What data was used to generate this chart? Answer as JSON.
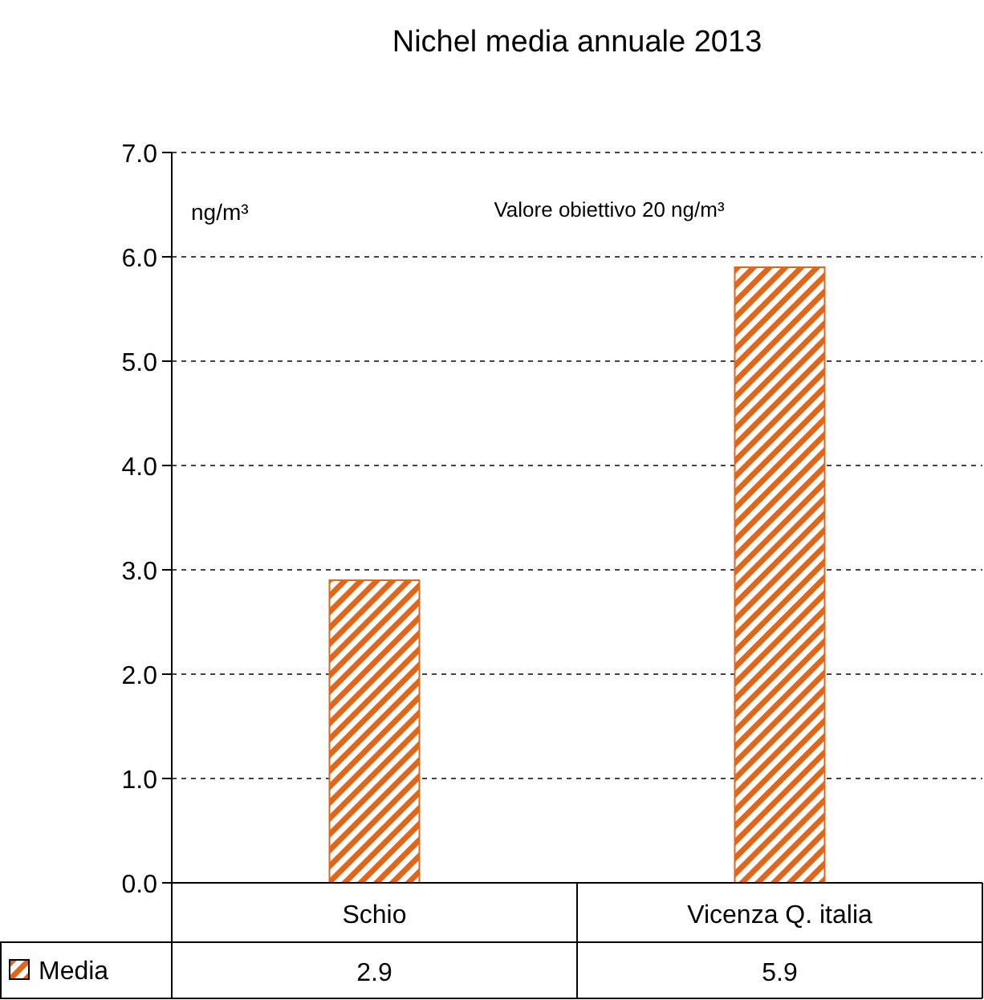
{
  "chart_data": {
    "type": "bar",
    "title": "Nichel media annuale 2013",
    "ylabel": "ng/m³",
    "annotations": [
      "Valore obiettivo 20 ng/m³"
    ],
    "categories": [
      "Schio",
      "Vicenza Q. italia"
    ],
    "series": [
      {
        "name": "Media",
        "color": "#e0661a",
        "values": [
          2.9,
          5.9
        ]
      }
    ],
    "ylim": [
      0,
      7
    ],
    "yticks": [
      {
        "value": 0,
        "label": "0.0"
      },
      {
        "value": 1,
        "label": "1.0"
      },
      {
        "value": 2,
        "label": "2.0"
      },
      {
        "value": 3,
        "label": "3.0"
      },
      {
        "value": 4,
        "label": "4.0"
      },
      {
        "value": 5,
        "label": "5.0"
      },
      {
        "value": 6,
        "label": "6.0"
      },
      {
        "value": 7,
        "label": "7.0"
      }
    ],
    "grid": "y",
    "legend": "bottom left",
    "data_labels": true
  }
}
